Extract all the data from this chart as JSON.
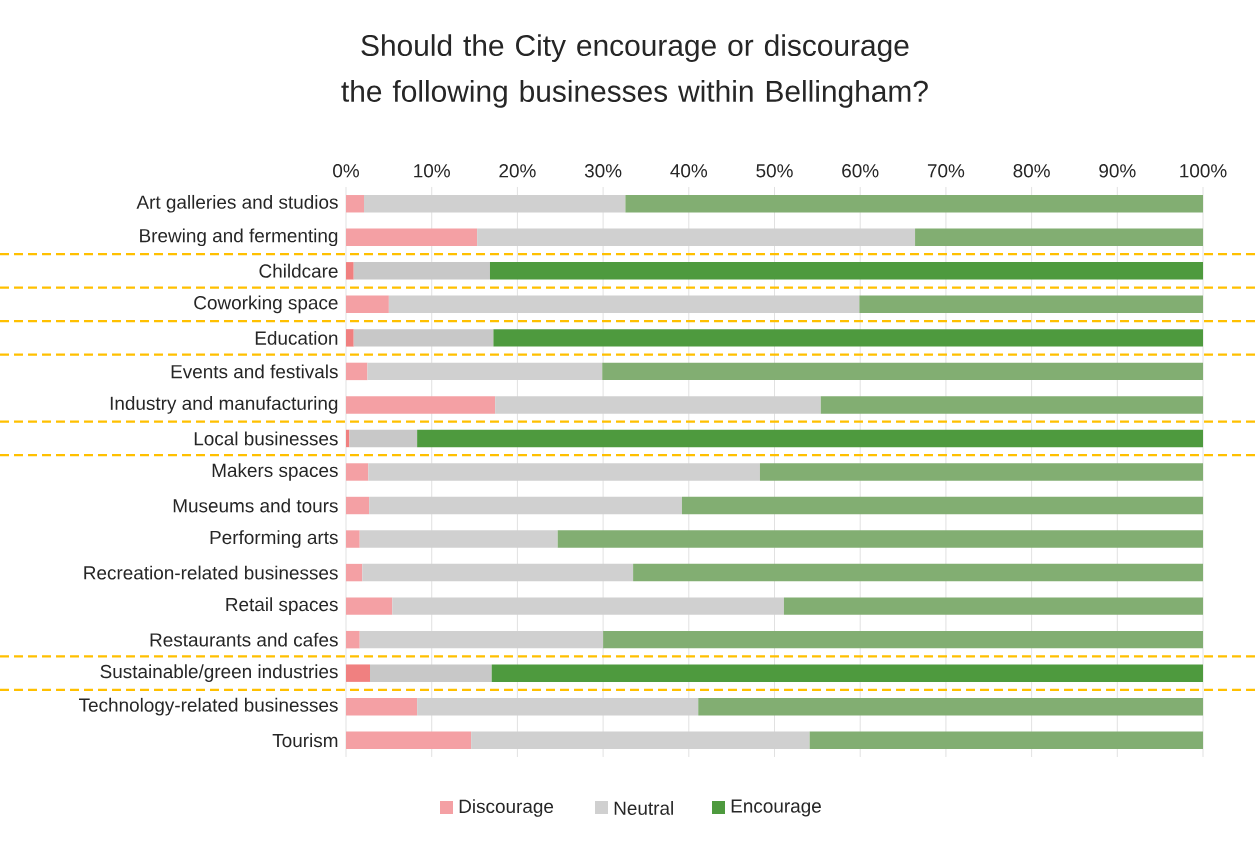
{
  "chart_data": {
    "type": "bar",
    "orientation": "horizontal",
    "stacked": true,
    "title": "Should the City encourage or discourage the following businesses within Bellingham?",
    "categories": [
      "Art galleries and studios",
      "Brewing and fermenting",
      "Childcare",
      "Coworking space",
      "Education",
      "Events and festivals",
      "Industry and manufacturing",
      "Local businesses",
      "Makers spaces",
      "Museums and tours",
      "Performing arts",
      "Recreation-related businesses",
      "Retail spaces",
      "Restaurants and cafes",
      "Sustainable/green industries",
      "Technology-related businesses",
      "Tourism"
    ],
    "series": [
      {
        "name": "Discourage",
        "color": "#f4a0a4",
        "colors": [
          "#f4a0a4",
          "#f4a0a4",
          "#f08080",
          "#f4a0a4",
          "#f08080",
          "#f4a0a4",
          "#f4a0a4",
          "#f08080",
          "#f4a0a4",
          "#f4a0a4",
          "#f4a0a4",
          "#f4a0a4",
          "#f4a0a4",
          "#f4a0a4",
          "#f08080",
          "#f4a0a4",
          "#f4a0a4"
        ],
        "values": [
          2.1,
          15.3,
          0.9,
          5.0,
          0.9,
          2.5,
          17.4,
          0.4,
          2.6,
          2.7,
          1.6,
          1.9,
          5.4,
          1.6,
          2.8,
          8.3,
          14.6
        ]
      },
      {
        "name": "Neutral",
        "color": "#d0d0d0",
        "colors": [
          "#d0d0d0",
          "#d0d0d0",
          "#c8c8c8",
          "#d0d0d0",
          "#c8c8c8",
          "#d0d0d0",
          "#d0d0d0",
          "#c8c8c8",
          "#d0d0d0",
          "#d0d0d0",
          "#d0d0d0",
          "#d0d0d0",
          "#d0d0d0",
          "#d0d0d0",
          "#c8c8c8",
          "#d0d0d0",
          "#d0d0d0"
        ],
        "values": [
          30.5,
          51.1,
          15.9,
          54.9,
          16.3,
          27.4,
          38.0,
          7.9,
          45.7,
          36.5,
          23.1,
          31.6,
          45.7,
          28.4,
          14.2,
          32.8,
          39.5
        ]
      },
      {
        "name": "Encourage",
        "color": "#4e9a3e",
        "colors": [
          "#82ae72",
          "#82ae72",
          "#4e9a3e",
          "#82ae72",
          "#4e9a3e",
          "#82ae72",
          "#82ae72",
          "#4e9a3e",
          "#82ae72",
          "#82ae72",
          "#82ae72",
          "#82ae72",
          "#82ae72",
          "#82ae72",
          "#4e9a3e",
          "#82ae72",
          "#82ae72"
        ],
        "values": [
          67.4,
          33.6,
          83.2,
          40.1,
          82.8,
          70.1,
          44.6,
          91.7,
          51.7,
          60.8,
          75.3,
          66.5,
          48.9,
          70.0,
          83.0,
          58.9,
          45.9
        ]
      }
    ],
    "xlim": [
      0,
      100
    ],
    "xticks": [
      {
        "value": 0,
        "label": "0%"
      },
      {
        "value": 10,
        "label": "10%"
      },
      {
        "value": 20,
        "label": "20%"
      },
      {
        "value": 30,
        "label": "30%"
      },
      {
        "value": 40,
        "label": "40%"
      },
      {
        "value": 50,
        "label": "50%"
      },
      {
        "value": 60,
        "label": "60%"
      },
      {
        "value": 70,
        "label": "70%"
      },
      {
        "value": 80,
        "label": "80%"
      },
      {
        "value": 90,
        "label": "90%"
      },
      {
        "value": 100,
        "label": "100%"
      }
    ],
    "grid": "x",
    "legend": "bottom"
  }
}
